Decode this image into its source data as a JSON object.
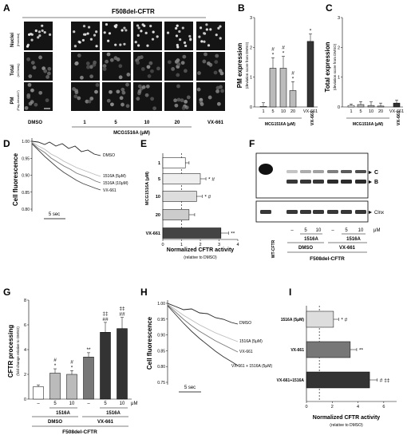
{
  "panels": {
    "A": "A",
    "B": "B",
    "C": "C",
    "D": "D",
    "E": "E",
    "F": "F",
    "G": "G",
    "H": "H",
    "I": "I"
  },
  "panelA": {
    "title": "F508del-CFTR",
    "rows": [
      {
        "label": "Nuclei",
        "sub": "(Hoechst)"
      },
      {
        "label": "Total",
        "sub": "(mCherry)"
      },
      {
        "label": "PM",
        "sub": "(Flag-Alexa647)"
      }
    ],
    "cols": [
      "DMSO",
      "1",
      "5",
      "10",
      "20",
      "VX-661"
    ],
    "group_label": "MCG1516A (μM)"
  },
  "panelB": {
    "ylabel": "PM expression",
    "ysub": "(deviation score from DMSO)",
    "yticks": [
      "0",
      "1",
      "2",
      "3"
    ],
    "group_label": "MCG1516A (μM)",
    "vx_label": "VX-661"
  },
  "panelC": {
    "ylabel": "Total expression",
    "ysub": "(deviation score from DMSO)",
    "yticks": [
      "0",
      "1",
      "2",
      "3"
    ],
    "group_label": "MCG1516A (μM)",
    "vx_label": "VX-661"
  },
  "panelD": {
    "ylabel": "Cell fluorescence",
    "yticks": [
      "0.80",
      "0.85",
      "0.90",
      "0.95",
      "1.00"
    ],
    "scale": "5 sec",
    "trace_labels": [
      "DMSO",
      "1516A (5μM)",
      "1516A (10μM)",
      "VX-661"
    ]
  },
  "panelE": {
    "yaxis": "MCG1516A (μM)",
    "xlabel": "Normalized CFTR activity",
    "xsub": "(relative to DMSO)",
    "xticks": [
      "0",
      "1",
      "2",
      "3",
      "4"
    ],
    "vx_label": "VX-661"
  },
  "panelF": {
    "markers": [
      "C",
      "B",
      "Clnx"
    ],
    "wt_label": "WT-CFTR",
    "lane_labels": [
      "–",
      "5",
      "10",
      "–",
      "5",
      "10"
    ],
    "unit": "μM",
    "drug_label": "1516A",
    "groups": [
      "DMSO",
      "VX-661"
    ],
    "footer": "F508del-CFTR"
  },
  "panelG": {
    "ylabel": "CFTR processing",
    "ysub": "(fold change relative to DMSO)",
    "yticks": [
      "0",
      "2",
      "4",
      "6",
      "8"
    ],
    "lane_labels": [
      "–",
      "5",
      "10",
      "–",
      "5",
      "10"
    ],
    "unit": "μM",
    "drug_label": "1516A",
    "groups": [
      "DMSO",
      "VX-661"
    ],
    "footer": "F508del-CFTR"
  },
  "panelH": {
    "ylabel": "Cell fluorescence",
    "yticks": [
      "0.75",
      "0.80",
      "0.85",
      "0.90",
      "0.95",
      "1.00"
    ],
    "scale": "5 sec",
    "trace_labels": [
      "DMSO",
      "1516A (5μM)",
      "VX-661",
      "VX-661 + 1516A (5μM)"
    ]
  },
  "panelI": {
    "xlabel": "Normalized CFTR activity",
    "xsub": "(relative to DMSO)",
    "xticks": [
      "0",
      "2",
      "4",
      "6"
    ]
  },
  "chart_data": [
    {
      "panel": "B",
      "type": "bar",
      "categories": [
        "1",
        "5",
        "10",
        "20",
        "VX-661"
      ],
      "values": [
        0.02,
        1.3,
        1.3,
        0.55,
        2.2
      ],
      "errors": [
        0.12,
        0.35,
        0.4,
        0.3,
        0.25
      ],
      "annotations": [
        "",
        "* #",
        "* #",
        "* #",
        "*"
      ],
      "ylim": [
        0,
        3
      ],
      "ylabel": "PM expression"
    },
    {
      "panel": "C",
      "type": "bar",
      "categories": [
        "1",
        "5",
        "10",
        "20",
        "VX-661"
      ],
      "values": [
        0.05,
        0.08,
        0.05,
        0.03,
        0.13
      ],
      "errors": [
        0.05,
        0.1,
        0.12,
        0.1,
        0.1
      ],
      "ylim": [
        0,
        3
      ],
      "ylabel": "Total expression"
    },
    {
      "panel": "E",
      "type": "bar",
      "orientation": "horizontal",
      "categories": [
        "1",
        "5",
        "10",
        "20",
        "VX-661"
      ],
      "values": [
        1.2,
        2.0,
        1.8,
        1.4,
        3.1
      ],
      "errors": [
        0.2,
        0.3,
        0.3,
        0.3,
        0.4
      ],
      "annotations": [
        "",
        "* #",
        "* #",
        "",
        "**"
      ],
      "xlim": [
        0,
        4
      ],
      "xlabel": "Normalized CFTR activity"
    },
    {
      "panel": "G",
      "type": "bar",
      "categories": [
        "DMSO –",
        "DMSO 5",
        "DMSO 10",
        "VX-661 –",
        "VX-661 5",
        "VX-661 10"
      ],
      "values": [
        1.0,
        2.1,
        2.0,
        3.4,
        5.4,
        5.7
      ],
      "errors": [
        0.15,
        0.35,
        0.3,
        0.35,
        0.8,
        0.9
      ],
      "annotations": [
        "",
        "* #",
        "* #",
        "**",
        "## ‡‡",
        "## ‡‡"
      ],
      "ylim": [
        0,
        8
      ],
      "ylabel": "CFTR processing"
    },
    {
      "panel": "I",
      "type": "bar",
      "orientation": "horizontal",
      "categories": [
        "1516A (5μM)",
        "VX-661",
        "VX-661+1516A"
      ],
      "values": [
        2.1,
        3.4,
        4.9
      ],
      "errors": [
        0.4,
        0.5,
        0.6
      ],
      "annotations": [
        "* #",
        "**",
        "# ‡‡"
      ],
      "xlim": [
        0,
        7
      ],
      "xlabel": "Normalized CFTR activity"
    }
  ]
}
